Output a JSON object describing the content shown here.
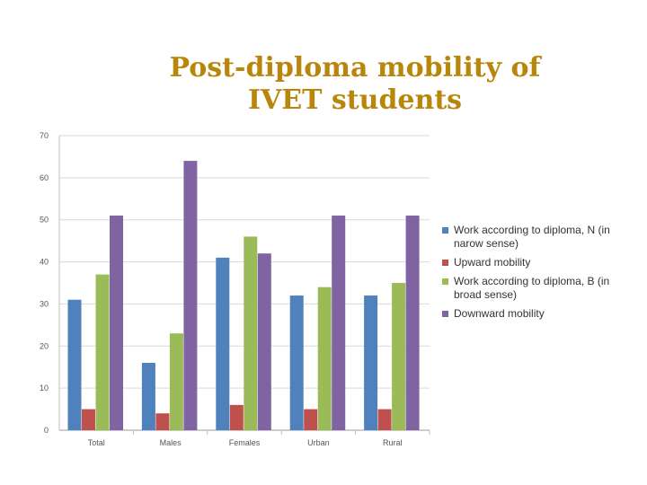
{
  "slide": {
    "title": "Post-diploma mobility of IVET students"
  },
  "chart_data": {
    "type": "bar",
    "categories": [
      "Total",
      "Males",
      "Females",
      "Urban",
      "Rural"
    ],
    "series": [
      {
        "name": "Work according to diploma,  N (in narow sense)",
        "color": "#4f81bd",
        "values": [
          31,
          16,
          41,
          32,
          32
        ]
      },
      {
        "name": "Upward mobility",
        "color": "#c0504d",
        "values": [
          5,
          4,
          6,
          5,
          5
        ]
      },
      {
        "name": "Work according to diploma,  B (in broad sense)",
        "color": "#9bbb59",
        "values": [
          37,
          23,
          46,
          34,
          35
        ]
      },
      {
        "name": "Downward mobility",
        "color": "#8064a2",
        "values": [
          51,
          64,
          42,
          51,
          51
        ]
      }
    ],
    "ylim": [
      0,
      70
    ],
    "yticks": [
      0,
      10,
      20,
      30,
      40,
      50,
      60,
      70
    ],
    "grid": true,
    "legend_position": "right"
  }
}
